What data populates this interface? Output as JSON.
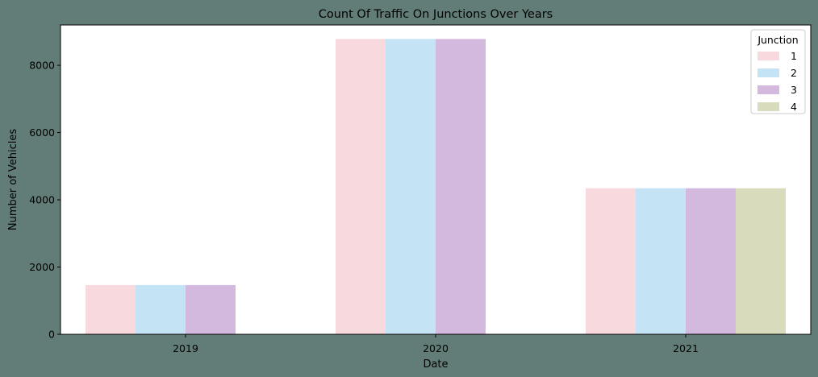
{
  "chart_data": {
    "type": "bar",
    "title": "Count Of Traffic On Junctions Over Years",
    "xlabel": "Date",
    "ylabel": "Number of Vehicles",
    "categories": [
      "2019",
      "2020",
      "2021"
    ],
    "ylim": [
      0,
      9200
    ],
    "yticks": [
      0,
      2000,
      4000,
      6000,
      8000
    ],
    "ytick_labels": [
      "0",
      "2000",
      "4000",
      "6000",
      "8000"
    ],
    "legend": {
      "title": "Junction",
      "position": "top-right"
    },
    "grid": false,
    "series": [
      {
        "name": "1",
        "color": "#f8d9de",
        "values": [
          1464,
          8784,
          4344
        ]
      },
      {
        "name": "2",
        "color": "#c4e3f5",
        "values": [
          1464,
          8784,
          4344
        ]
      },
      {
        "name": "3",
        "color": "#d4b9df",
        "values": [
          1464,
          8784,
          4344
        ]
      },
      {
        "name": "4",
        "color": "#d8dcbc",
        "values": [
          0,
          0,
          4344
        ]
      }
    ]
  }
}
